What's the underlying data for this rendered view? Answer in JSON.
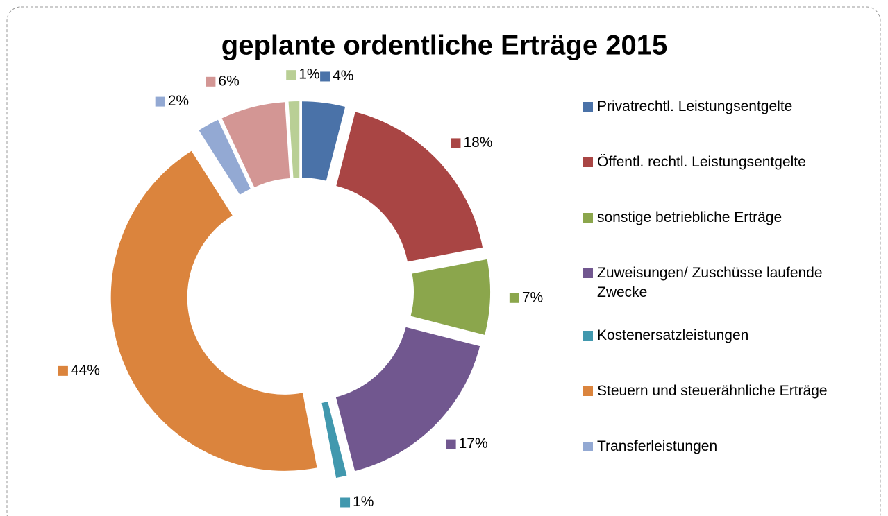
{
  "chart_data": {
    "type": "donut",
    "title": "geplante ordentliche Erträge 2015",
    "categories": [
      "Privatrechtl. Leistungsentgelte",
      "Öffentl. rechtl. Leistungsentgelte",
      "sonstige betriebliche Erträge",
      "Zuweisungen/ Zuschüsse laufende Zwecke",
      "Kostenersatzleistungen",
      "Steuern und steuerähnliche Erträge",
      "Transferleistungen",
      null,
      null
    ],
    "values": [
      4,
      18,
      7,
      17,
      1,
      44,
      2,
      6,
      1
    ],
    "value_labels": [
      "4%",
      "18%",
      "7%",
      "17%",
      "1%",
      "44%",
      "2%",
      "6%",
      "1%"
    ],
    "colors": [
      "#4a72a8",
      "#a94544",
      "#8ba64c",
      "#71578f",
      "#4198ae",
      "#db843d",
      "#93a9d3",
      "#d39694",
      "#b9cf95"
    ],
    "legend": "right"
  }
}
